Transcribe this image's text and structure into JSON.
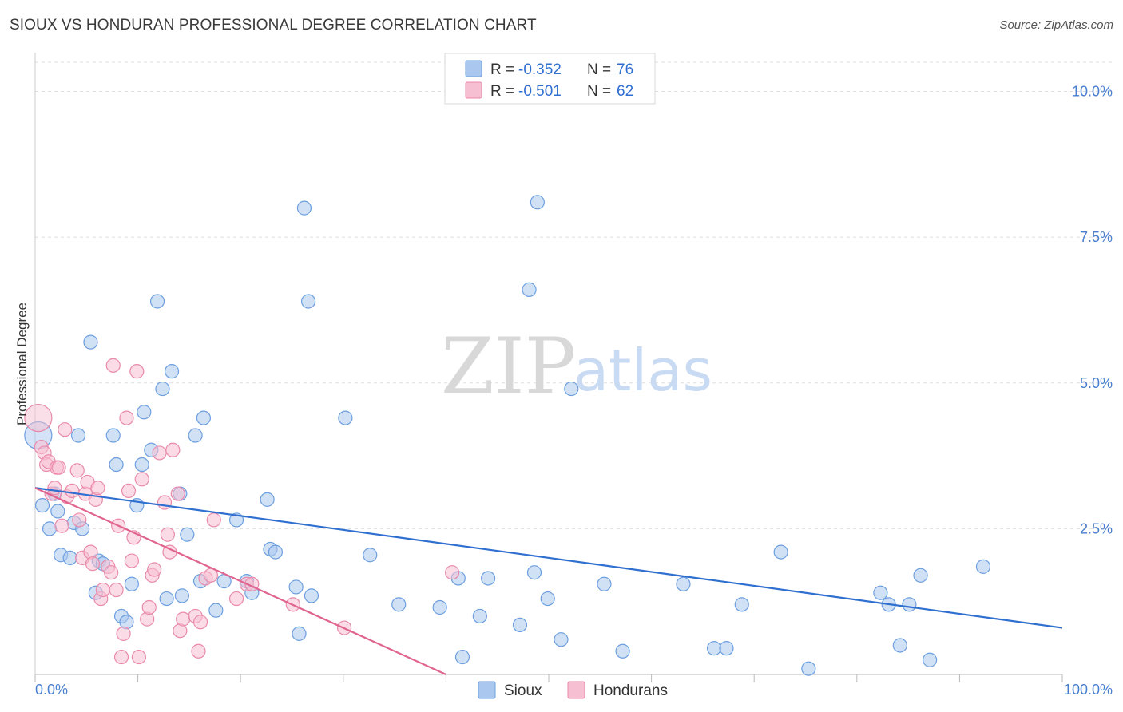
{
  "header": {
    "title": "SIOUX VS HONDURAN PROFESSIONAL DEGREE CORRELATION CHART",
    "source": "Source: ZipAtlas.com"
  },
  "watermark": {
    "zip": "ZIP",
    "atlas": "atlas"
  },
  "colors": {
    "sioux_fill": "#aac8ef",
    "sioux_stroke": "#6d9fdf",
    "sioux_line": "#2f6fd0",
    "hond_fill": "#f7bfd2",
    "hond_stroke": "#e98aab",
    "hond_line": "#e0648f",
    "grid": "#dddddd",
    "tick_label": "#4a7fd0"
  },
  "chart_data": {
    "type": "scatter",
    "title": "SIOUX VS HONDURAN PROFESSIONAL DEGREE CORRELATION CHART",
    "xlabel": "",
    "ylabel": "Professional Degree",
    "xlim": [
      0,
      100
    ],
    "ylim": [
      0,
      10.5
    ],
    "y_ticks": [
      {
        "value": 2.5,
        "label": "2.5%"
      },
      {
        "value": 5.0,
        "label": "5.0%"
      },
      {
        "value": 7.5,
        "label": "7.5%"
      },
      {
        "value": 10.0,
        "label": "10.0%"
      }
    ],
    "x_tick_labels": {
      "min": "0.0%",
      "max": "100.0%"
    },
    "grid": true,
    "legend": {
      "placement": "top-center",
      "entries": [
        {
          "series": "Sioux",
          "r_label": "R =",
          "r_value": "-0.352",
          "n_label": "N =",
          "n_value": "76"
        },
        {
          "series": "Hondurans",
          "r_label": "R =",
          "r_value": "-0.501",
          "n_label": "N =",
          "n_value": "62"
        }
      ]
    },
    "series": [
      {
        "name": "Sioux",
        "points": [
          [
            0.3,
            4.1
          ],
          [
            0.7,
            2.9
          ],
          [
            1.4,
            2.5
          ],
          [
            1.9,
            3.1
          ],
          [
            2.2,
            2.8
          ],
          [
            2.5,
            2.05
          ],
          [
            3.4,
            2.0
          ],
          [
            3.8,
            2.6
          ],
          [
            4.2,
            4.1
          ],
          [
            4.6,
            2.5
          ],
          [
            5.4,
            5.7
          ],
          [
            5.9,
            1.4
          ],
          [
            6.2,
            1.95
          ],
          [
            6.6,
            1.9
          ],
          [
            7.6,
            4.1
          ],
          [
            7.9,
            3.6
          ],
          [
            8.4,
            1.0
          ],
          [
            8.9,
            0.9
          ],
          [
            9.4,
            1.55
          ],
          [
            9.9,
            2.9
          ],
          [
            10.4,
            3.6
          ],
          [
            10.6,
            4.5
          ],
          [
            11.3,
            3.85
          ],
          [
            11.9,
            6.4
          ],
          [
            12.4,
            4.9
          ],
          [
            12.8,
            1.3
          ],
          [
            13.3,
            5.2
          ],
          [
            14.1,
            3.1
          ],
          [
            14.3,
            1.35
          ],
          [
            14.8,
            2.4
          ],
          [
            15.6,
            4.1
          ],
          [
            16.1,
            1.6
          ],
          [
            16.4,
            4.4
          ],
          [
            17.6,
            1.1
          ],
          [
            18.4,
            1.6
          ],
          [
            19.6,
            2.65
          ],
          [
            20.6,
            1.6
          ],
          [
            21.1,
            1.4
          ],
          [
            22.6,
            3.0
          ],
          [
            22.9,
            2.15
          ],
          [
            23.4,
            2.1
          ],
          [
            25.4,
            1.5
          ],
          [
            25.7,
            0.7
          ],
          [
            26.2,
            8.0
          ],
          [
            26.6,
            6.4
          ],
          [
            26.9,
            1.35
          ],
          [
            30.2,
            4.4
          ],
          [
            32.6,
            2.05
          ],
          [
            35.4,
            1.2
          ],
          [
            39.4,
            1.15
          ],
          [
            41.2,
            1.65
          ],
          [
            41.6,
            0.3
          ],
          [
            43.3,
            1.0
          ],
          [
            44.1,
            1.65
          ],
          [
            47.2,
            0.85
          ],
          [
            48.1,
            6.6
          ],
          [
            48.6,
            1.75
          ],
          [
            48.9,
            8.1
          ],
          [
            49.9,
            1.3
          ],
          [
            51.2,
            0.6
          ],
          [
            52.2,
            4.9
          ],
          [
            55.4,
            1.55
          ],
          [
            57.2,
            0.4
          ],
          [
            63.1,
            1.55
          ],
          [
            66.1,
            0.45
          ],
          [
            67.3,
            0.45
          ],
          [
            68.8,
            1.2
          ],
          [
            72.6,
            2.1
          ],
          [
            75.3,
            0.1
          ],
          [
            82.3,
            1.4
          ],
          [
            83.1,
            1.2
          ],
          [
            84.2,
            0.5
          ],
          [
            85.1,
            1.2
          ],
          [
            86.2,
            1.7
          ],
          [
            87.1,
            0.25
          ],
          [
            92.3,
            1.85
          ]
        ],
        "trend": {
          "x": [
            0,
            100
          ],
          "y": [
            3.2,
            0.8
          ]
        }
      },
      {
        "name": "Hondurans",
        "points": [
          [
            0.3,
            4.4
          ],
          [
            0.6,
            3.9
          ],
          [
            0.9,
            3.8
          ],
          [
            1.1,
            3.6
          ],
          [
            1.3,
            3.65
          ],
          [
            1.6,
            3.1
          ],
          [
            1.9,
            3.2
          ],
          [
            2.1,
            3.55
          ],
          [
            2.3,
            3.55
          ],
          [
            2.6,
            2.55
          ],
          [
            2.9,
            4.2
          ],
          [
            3.1,
            3.05
          ],
          [
            3.6,
            3.15
          ],
          [
            4.1,
            3.5
          ],
          [
            4.3,
            2.65
          ],
          [
            4.6,
            2.0
          ],
          [
            4.9,
            3.1
          ],
          [
            5.1,
            3.3
          ],
          [
            5.4,
            2.1
          ],
          [
            5.6,
            1.9
          ],
          [
            5.9,
            3.0
          ],
          [
            6.1,
            3.2
          ],
          [
            6.4,
            1.3
          ],
          [
            6.6,
            1.45
          ],
          [
            7.1,
            1.85
          ],
          [
            7.4,
            1.75
          ],
          [
            7.6,
            5.3
          ],
          [
            7.9,
            1.45
          ],
          [
            8.1,
            2.55
          ],
          [
            8.4,
            0.3
          ],
          [
            8.6,
            0.7
          ],
          [
            8.9,
            4.4
          ],
          [
            9.1,
            3.15
          ],
          [
            9.4,
            1.95
          ],
          [
            9.6,
            2.35
          ],
          [
            9.9,
            5.2
          ],
          [
            10.1,
            0.3
          ],
          [
            10.4,
            3.35
          ],
          [
            10.9,
            0.95
          ],
          [
            11.1,
            1.15
          ],
          [
            11.4,
            1.7
          ],
          [
            11.6,
            1.8
          ],
          [
            12.1,
            3.8
          ],
          [
            12.6,
            2.95
          ],
          [
            12.9,
            2.4
          ],
          [
            13.1,
            2.1
          ],
          [
            13.4,
            3.85
          ],
          [
            13.9,
            3.1
          ],
          [
            14.1,
            0.75
          ],
          [
            14.4,
            0.95
          ],
          [
            15.6,
            1.0
          ],
          [
            15.9,
            0.4
          ],
          [
            16.1,
            0.9
          ],
          [
            16.6,
            1.65
          ],
          [
            17.1,
            1.7
          ],
          [
            17.4,
            2.65
          ],
          [
            19.6,
            1.3
          ],
          [
            20.6,
            1.55
          ],
          [
            21.1,
            1.55
          ],
          [
            25.1,
            1.2
          ],
          [
            30.1,
            0.8
          ],
          [
            40.6,
            1.75
          ]
        ],
        "trend": {
          "x": [
            0,
            40
          ],
          "y": [
            3.2,
            0.0
          ]
        }
      }
    ]
  }
}
